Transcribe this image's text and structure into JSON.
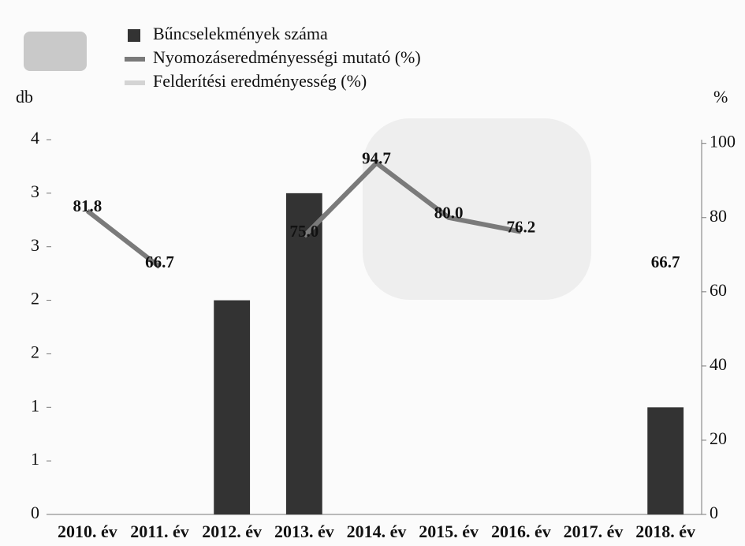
{
  "chart_data": {
    "type": "bar-line",
    "y_label": "db",
    "y2_label": "%",
    "categories": [
      "2010. év",
      "2011. év",
      "2012. év",
      "2013. év",
      "2014. év",
      "2015. év",
      "2016. év",
      "2017. év",
      "2018. év"
    ],
    "series": [
      {
        "name": "Bűncselekmények száma",
        "type": "bar",
        "color": "#333333",
        "values": [
          null,
          null,
          2,
          3,
          null,
          null,
          null,
          null,
          1
        ]
      },
      {
        "name": "Nyomozáseredményességi mutató (%)",
        "type": "line",
        "axis": "y2",
        "color": "#7a7a7a",
        "values": [
          81.8,
          66.7,
          null,
          75.0,
          94.7,
          80.0,
          76.2,
          null,
          66.7
        ],
        "value_labels": [
          "81.8",
          "66.7",
          null,
          "75.0",
          "94.7",
          "80.0",
          "76.2",
          null,
          "66.7"
        ]
      },
      {
        "name": "Felderítési eredményesség (%)",
        "type": "line",
        "axis": "y2",
        "color": "#d4d4d4",
        "values": [
          null,
          null,
          null,
          null,
          null,
          null,
          null,
          null,
          null
        ]
      }
    ],
    "ylim": [
      0,
      3.5
    ],
    "yticks": [
      0,
      {
        "value": 0.5,
        "label": "1"
      },
      1,
      {
        "value": 1.5,
        "label": "2"
      },
      2,
      {
        "value": 2.5,
        "label": "3"
      },
      3,
      {
        "value": 3.5,
        "label": "4"
      }
    ],
    "y2lim": [
      0,
      101
    ],
    "y2ticks": [
      0,
      20,
      40,
      60,
      80,
      100
    ]
  }
}
